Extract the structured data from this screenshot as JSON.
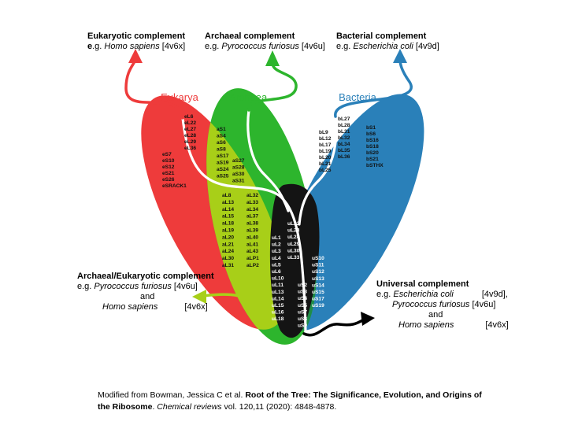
{
  "complements": {
    "eukaryotic": {
      "title": "Eukaryotic complement",
      "eg_bold": "e",
      "eg_rest": ".g. ",
      "species": "Homo sapiens",
      "pdb": " [4v6x]"
    },
    "archaeal": {
      "title": "Archaeal complement",
      "eg": "e.g. ",
      "species": "Pyrococcus furiosus",
      "pdb": " [4v6u]"
    },
    "bacterial": {
      "title": "Bacterial complement",
      "eg": "e.g. ",
      "species": "Escherichia coli",
      "pdb": " [4v9d]"
    },
    "archaeal_eukaryotic": {
      "title": "Archaeal/Eukaryotic complement",
      "eg": "e.g. ",
      "species1": "Pyrococcus furiosus",
      "pdb1": " [4v6u]",
      "and": "and",
      "species2": "Homo sapiens",
      "pdb2": "[4v6x]"
    },
    "universal": {
      "title": "Universal complement",
      "eg": "e.g. ",
      "species1": "Escherichia coli",
      "pdb1": "[4v9d],",
      "species2": "Pyrococcus furiosus",
      "pdb2": " [4v6u]",
      "and": "and",
      "species3": "Homo sapiens",
      "pdb3": "[4v6x]"
    }
  },
  "domains": {
    "eukarya": {
      "label": "Eukarya",
      "color": "#ee3b3b"
    },
    "archaea": {
      "label": "Archaea",
      "color": "#2db52d"
    },
    "bacteria": {
      "label": "Bacteria",
      "color": "#2a80b9"
    },
    "overlap_ae_color": "#a8cf18",
    "overlap_ab_color": "#1f8c47",
    "universal_color": "#141414"
  },
  "proteins": {
    "eukarya_top": [
      "eL6",
      "eL22",
      "eL27",
      "eL28",
      "eL29",
      "eL36"
    ],
    "eukarya_lower": [
      "eS7",
      "eS10",
      "eS12",
      "eS21",
      "eS26",
      "eSRACK1"
    ],
    "archaea_a": [
      "aS1",
      "aS4",
      "aS6",
      "aS8",
      "aS17",
      "aS19",
      "aS24",
      "aS25"
    ],
    "archaea_b": [
      "aS27",
      "aS28",
      "aS30",
      "aS31"
    ],
    "ae_col1": [
      "aL8",
      "aL13",
      "aL14",
      "aL15",
      "aL18",
      "aL19",
      "aL20",
      "aL21",
      "aL24",
      "aL30",
      "aL31"
    ],
    "ae_col2": [
      "aL32",
      "aL33",
      "aL34",
      "aL37",
      "aL38",
      "aL39",
      "aL40",
      "aL41",
      "aL43",
      "aLP1",
      "aLP2"
    ],
    "bact_col1": [
      "bL9",
      "bL12",
      "bL17",
      "bL19",
      "bL20",
      "bL21",
      "bL25"
    ],
    "bact_col2": [
      "bL27",
      "bL28",
      "bL31",
      "bL32",
      "bL34",
      "bL35",
      "bL36"
    ],
    "bact_col3": [
      "bS1",
      "bS6",
      "bS16",
      "bS18",
      "bS20",
      "bS21",
      "bSTHX"
    ],
    "uni_col1": [
      "uL1",
      "uL2",
      "uL3",
      "uL4",
      "uL5",
      "uL6",
      "uL10",
      "uL11",
      "uL13",
      "uL14",
      "uL15",
      "uL16",
      "uL18"
    ],
    "uni_col2": [
      "uL22",
      "uL23",
      "uL24",
      "uL29",
      "uL30",
      "uL33"
    ],
    "uni_col3": [
      "uS2",
      "uS3",
      "uS4",
      "uS5",
      "uS7",
      "uS8",
      "uS9"
    ],
    "uni_col4": [
      "uS10",
      "uS11",
      "uS12",
      "uS13",
      "uS14",
      "uS15",
      "uS17",
      "uS19"
    ]
  },
  "caption": {
    "prefix": "Modified from Bowman, Jessica C et al. ",
    "title": "Root of the Tree: The Significance, Evolution, and Origins of the Ribosome",
    "sep": ". ",
    "journal": "Chemical reviews",
    "suffix": " vol. 120,11 (2020): 4848-4878."
  }
}
